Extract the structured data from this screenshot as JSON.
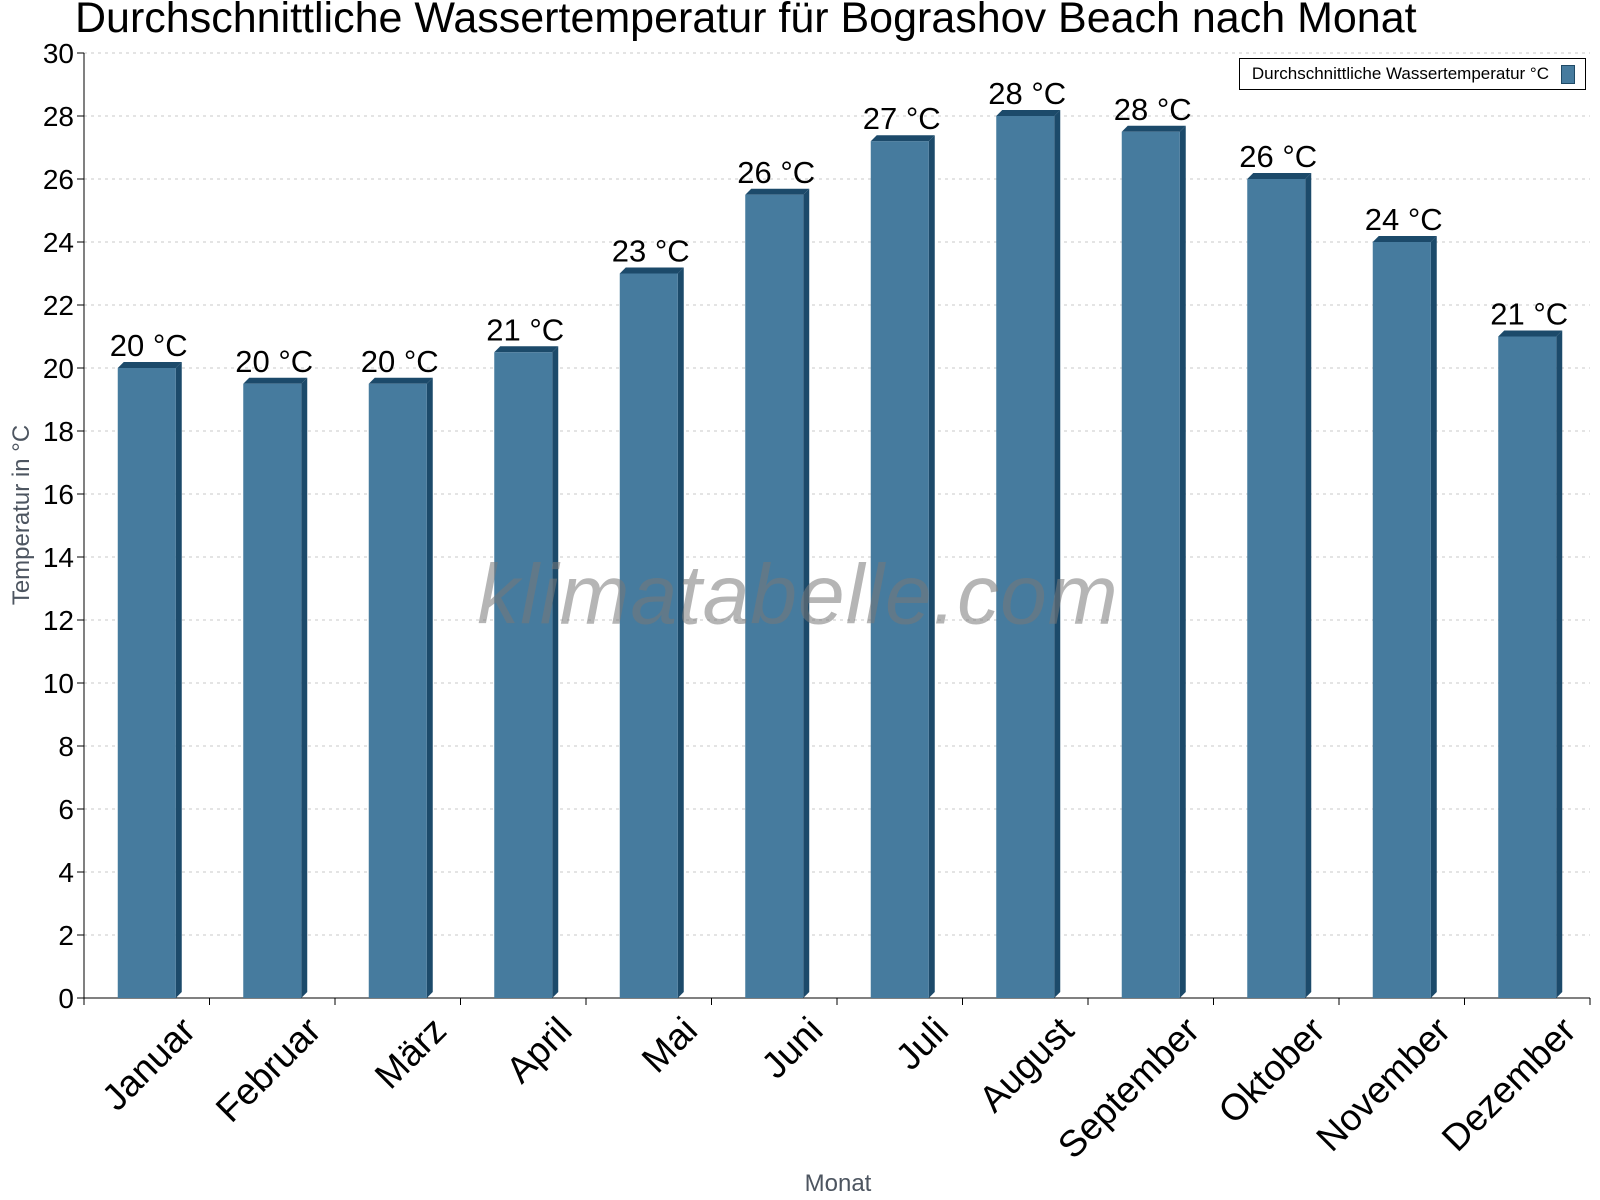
{
  "chart_data": {
    "type": "bar",
    "title": "Durchschnittliche Wassertemperatur für Bograshov Beach nach Monat",
    "xlabel": "Monat",
    "ylabel": "Temperatur in °C",
    "ylim": [
      0,
      30
    ],
    "yticks": [
      0,
      2,
      4,
      6,
      8,
      10,
      12,
      14,
      16,
      18,
      20,
      22,
      24,
      26,
      28,
      30
    ],
    "grid": true,
    "legend_position": "top-right",
    "categories": [
      "Januar",
      "Februar",
      "März",
      "April",
      "Mai",
      "Juni",
      "Juli",
      "August",
      "September",
      "Oktober",
      "November",
      "Dezember"
    ],
    "series": [
      {
        "name": "Durchschnittliche Wassertemperatur °C",
        "color": "#467b9e",
        "values": [
          20.0,
          19.5,
          19.5,
          20.5,
          23.0,
          25.5,
          27.2,
          28.0,
          27.5,
          26.0,
          24.0,
          21.0
        ],
        "data_labels": [
          "20 °C",
          "20 °C",
          "20 °C",
          "21 °C",
          "23 °C",
          "26 °C",
          "27 °C",
          "28 °C",
          "28 °C",
          "26 °C",
          "24 °C",
          "21 °C"
        ]
      }
    ]
  },
  "watermark": "klimatabelle.com"
}
